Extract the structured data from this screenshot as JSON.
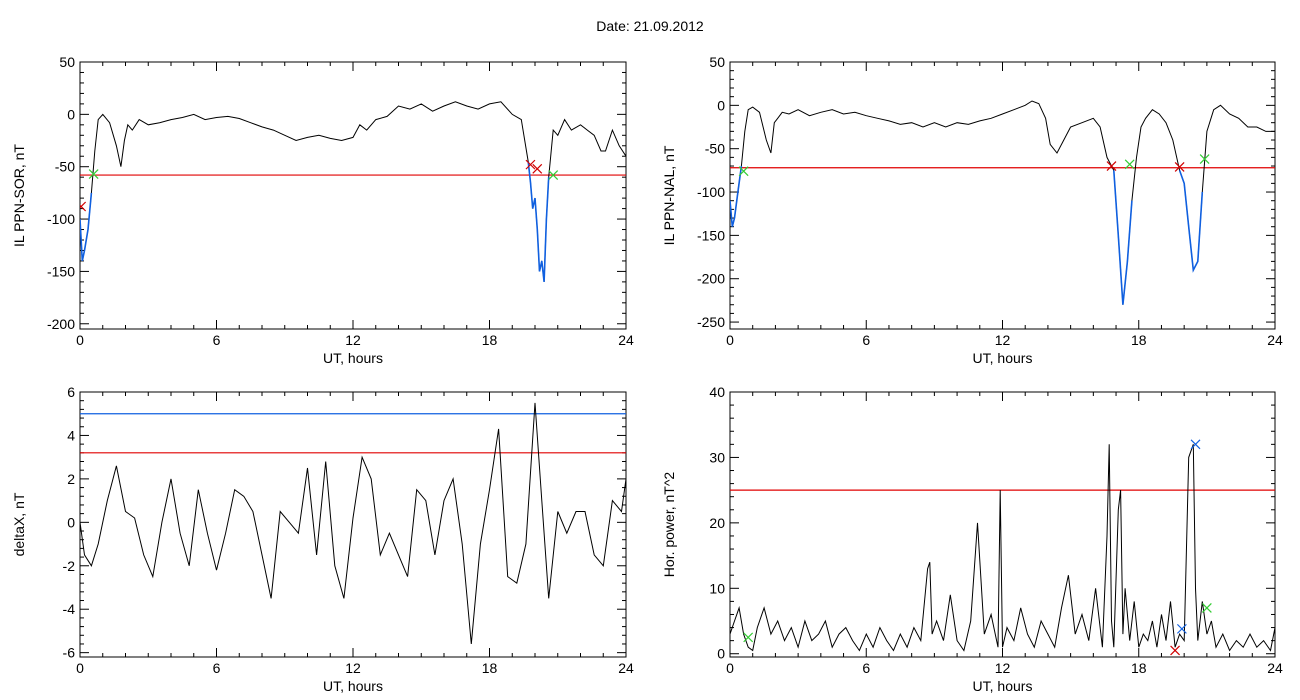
{
  "page_title": "Date:  21.09.2012",
  "colors": {
    "trace": "#000000",
    "threshold_red": "#e00000",
    "threshold_blue": "#1060e0",
    "overlay_blue": "#1060e0",
    "marker_red": "#d00000",
    "marker_green": "#33cc33",
    "marker_blue": "#1060e0"
  },
  "chart_data": [
    {
      "id": "sor",
      "type": "line",
      "xlabel": "UT, hours",
      "ylabel": "IL PPN-SOR, nT",
      "xlim": [
        0,
        24
      ],
      "ylim": [
        -205,
        50
      ],
      "xticks": [
        0,
        6,
        12,
        18,
        24
      ],
      "yticks": [
        50,
        0,
        -50,
        -100,
        -150,
        -200
      ],
      "series": [
        {
          "x": [
            0,
            0.1,
            0.2,
            0.35,
            0.5,
            0.65,
            0.8,
            1.0,
            1.3,
            1.6,
            1.8,
            1.95,
            2.1,
            2.3,
            2.6,
            3,
            3.5,
            4,
            4.5,
            5,
            5.5,
            6,
            6.5,
            7,
            7.5,
            8,
            8.5,
            9,
            9.5,
            10,
            10.5,
            11,
            11.5,
            12,
            12.3,
            12.6,
            13,
            13.5,
            14,
            14.5,
            15,
            15.5,
            16,
            16.5,
            17,
            17.5,
            18,
            18.5,
            19,
            19.4,
            19.7,
            19.8,
            19.9,
            20.0,
            20.1,
            20.2,
            20.3,
            20.4,
            20.5,
            20.6,
            20.8,
            21.0,
            21.3,
            21.6,
            22,
            22.3,
            22.6,
            22.9,
            23.1,
            23.4,
            23.7,
            24
          ],
          "y": [
            -100,
            -140,
            -130,
            -110,
            -75,
            -35,
            -5,
            0,
            -8,
            -30,
            -50,
            -25,
            -10,
            -15,
            -5,
            -10,
            -8,
            -5,
            -3,
            0,
            -5,
            -3,
            -2,
            -4,
            -8,
            -12,
            -15,
            -20,
            -25,
            -22,
            -20,
            -23,
            -25,
            -22,
            -10,
            -15,
            -5,
            -2,
            8,
            5,
            10,
            3,
            8,
            12,
            8,
            5,
            10,
            12,
            0,
            -5,
            -45,
            -65,
            -90,
            -80,
            -110,
            -150,
            -140,
            -160,
            -100,
            -60,
            -15,
            -20,
            -5,
            -15,
            -10,
            -15,
            -20,
            -35,
            -35,
            -15,
            -30,
            -40
          ]
        }
      ],
      "overlays": [
        {
          "x": [
            0,
            0.1,
            0.2,
            0.35,
            0.5
          ],
          "y": [
            -100,
            -140,
            -130,
            -110,
            -75
          ]
        },
        {
          "x": [
            19.7,
            19.8,
            19.9,
            20.0,
            20.1,
            20.2,
            20.3,
            20.4,
            20.5,
            20.6
          ],
          "y": [
            -45,
            -65,
            -90,
            -80,
            -110,
            -150,
            -140,
            -160,
            -100,
            -60
          ]
        }
      ],
      "thresholds": [
        {
          "y": -58,
          "color": "red"
        }
      ],
      "markers": [
        {
          "x": 0.05,
          "y": -88,
          "color": "red"
        },
        {
          "x": 0.6,
          "y": -57,
          "color": "green"
        },
        {
          "x": 19.8,
          "y": -48,
          "color": "red"
        },
        {
          "x": 20.1,
          "y": -52,
          "color": "red"
        },
        {
          "x": 20.8,
          "y": -58,
          "color": "green"
        }
      ]
    },
    {
      "id": "nal",
      "type": "line",
      "xlabel": "UT, hours",
      "ylabel": "IL PPN-NAL, nT",
      "xlim": [
        0,
        24
      ],
      "ylim": [
        -258,
        50
      ],
      "xticks": [
        0,
        6,
        12,
        18,
        24
      ],
      "yticks": [
        50,
        0,
        -50,
        -100,
        -150,
        -200,
        -250
      ],
      "series": [
        {
          "x": [
            0,
            0.1,
            0.2,
            0.35,
            0.5,
            0.65,
            0.8,
            1.0,
            1.3,
            1.6,
            1.8,
            1.95,
            2.1,
            2.3,
            2.6,
            3,
            3.5,
            4,
            4.5,
            5,
            5.5,
            6,
            6.5,
            7,
            7.5,
            8,
            8.5,
            9,
            9.5,
            10,
            10.5,
            11,
            11.5,
            12,
            12.5,
            13,
            13.3,
            13.6,
            13.9,
            14.1,
            14.4,
            14.7,
            15,
            15.5,
            16,
            16.3,
            16.6,
            16.9,
            17.1,
            17.3,
            17.5,
            17.7,
            17.9,
            18.1,
            18.3,
            18.6,
            18.9,
            19.2,
            19.5,
            19.8,
            20.0,
            20.2,
            20.4,
            20.6,
            20.8,
            21.0,
            21.3,
            21.6,
            22,
            22.4,
            22.8,
            23.2,
            23.6,
            24
          ],
          "y": [
            -110,
            -140,
            -130,
            -100,
            -70,
            -30,
            -5,
            -2,
            -8,
            -40,
            -55,
            -20,
            -15,
            -8,
            -10,
            -5,
            -12,
            -8,
            -5,
            -10,
            -8,
            -12,
            -15,
            -18,
            -22,
            -20,
            -25,
            -20,
            -25,
            -20,
            -22,
            -18,
            -15,
            -10,
            -5,
            0,
            5,
            2,
            -15,
            -45,
            -55,
            -40,
            -25,
            -20,
            -15,
            -25,
            -60,
            -75,
            -150,
            -230,
            -180,
            -110,
            -60,
            -25,
            -15,
            -5,
            -10,
            -20,
            -40,
            -75,
            -90,
            -140,
            -190,
            -180,
            -100,
            -30,
            -5,
            0,
            -10,
            -15,
            -25,
            -25,
            -30,
            -30
          ]
        }
      ],
      "overlays": [
        {
          "x": [
            0,
            0.1,
            0.2,
            0.35,
            0.5
          ],
          "y": [
            -110,
            -140,
            -130,
            -100,
            -70
          ]
        },
        {
          "x": [
            16.9,
            17.1,
            17.3,
            17.5,
            17.7
          ],
          "y": [
            -75,
            -150,
            -230,
            -180,
            -110
          ]
        },
        {
          "x": [
            19.8,
            20.0,
            20.2,
            20.4,
            20.6,
            20.8
          ],
          "y": [
            -75,
            -90,
            -140,
            -190,
            -180,
            -100
          ]
        }
      ],
      "thresholds": [
        {
          "y": -72,
          "color": "red"
        }
      ],
      "markers": [
        {
          "x": 0.6,
          "y": -76,
          "color": "green"
        },
        {
          "x": 16.8,
          "y": -70,
          "color": "red"
        },
        {
          "x": 17.6,
          "y": -68,
          "color": "green"
        },
        {
          "x": 19.8,
          "y": -71,
          "color": "red"
        },
        {
          "x": 20.9,
          "y": -62,
          "color": "green"
        }
      ]
    },
    {
      "id": "deltax",
      "type": "line",
      "xlabel": "UT, hours",
      "ylabel": "deltaX, nT",
      "xlim": [
        0,
        24
      ],
      "ylim": [
        -6.2,
        6
      ],
      "xticks": [
        0,
        6,
        12,
        18,
        24
      ],
      "yticks": [
        6,
        4,
        2,
        0,
        -2,
        -4,
        -6
      ],
      "series": [
        {
          "x": [
            0,
            0.2,
            0.5,
            0.8,
            1.2,
            1.6,
            2.0,
            2.4,
            2.8,
            3.2,
            3.6,
            4.0,
            4.4,
            4.8,
            5.2,
            5.6,
            6.0,
            6.4,
            6.8,
            7.2,
            7.6,
            8.0,
            8.4,
            8.8,
            9.2,
            9.6,
            10,
            10.4,
            10.8,
            11.2,
            11.6,
            12,
            12.4,
            12.8,
            13.2,
            13.6,
            14,
            14.4,
            14.8,
            15.2,
            15.6,
            16,
            16.4,
            16.8,
            17.2,
            17.6,
            18,
            18.4,
            18.8,
            19.2,
            19.6,
            20,
            20.3,
            20.6,
            21,
            21.4,
            21.8,
            22.2,
            22.6,
            23,
            23.4,
            23.8,
            24
          ],
          "y": [
            0,
            -1.5,
            -2.0,
            -1.0,
            1.0,
            2.6,
            0.5,
            0.2,
            -1.5,
            -2.5,
            0,
            2.0,
            -0.5,
            -2.0,
            1.5,
            -0.5,
            -2.2,
            -0.5,
            1.5,
            1.2,
            0.5,
            -1.5,
            -3.5,
            0.5,
            0,
            -0.5,
            2.5,
            -1.5,
            2.8,
            -2.0,
            -3.5,
            0.2,
            3.0,
            2.0,
            -1.5,
            -0.5,
            -1.5,
            -2.5,
            1.5,
            1.0,
            -1.5,
            1.0,
            2.0,
            -1.0,
            -5.6,
            -1.0,
            1.5,
            4.3,
            -2.5,
            -2.8,
            -1.0,
            5.5,
            1.0,
            -3.5,
            0.5,
            -0.5,
            0.5,
            0.5,
            -1.5,
            -2.0,
            1.0,
            0.5,
            2.0
          ]
        }
      ],
      "thresholds": [
        {
          "y": 5.0,
          "color": "blue"
        },
        {
          "y": 3.2,
          "color": "red"
        }
      ],
      "markers": []
    },
    {
      "id": "power",
      "type": "line",
      "xlabel": "UT, hours",
      "ylabel": "Hor. power, nT^2",
      "xlim": [
        0,
        24
      ],
      "ylim": [
        -0.5,
        40
      ],
      "xticks": [
        0,
        6,
        12,
        18,
        24
      ],
      "yticks": [
        40,
        30,
        20,
        10,
        0
      ],
      "series": [
        {
          "x": [
            0,
            0.2,
            0.4,
            0.6,
            0.8,
            1.0,
            1.2,
            1.5,
            1.8,
            2.1,
            2.4,
            2.7,
            3.0,
            3.3,
            3.6,
            3.9,
            4.2,
            4.5,
            4.8,
            5.1,
            5.4,
            5.7,
            6.0,
            6.3,
            6.6,
            6.9,
            7.2,
            7.5,
            7.8,
            8.1,
            8.4,
            8.7,
            8.8,
            8.9,
            9.1,
            9.4,
            9.7,
            10.0,
            10.3,
            10.6,
            10.9,
            11.2,
            11.5,
            11.8,
            11.9,
            12.0,
            12.2,
            12.5,
            12.8,
            13.1,
            13.4,
            13.7,
            14.0,
            14.3,
            14.6,
            14.9,
            15.2,
            15.5,
            15.8,
            16.1,
            16.4,
            16.6,
            16.7,
            16.8,
            16.9,
            17.1,
            17.2,
            17.3,
            17.4,
            17.6,
            17.8,
            18.0,
            18.2,
            18.4,
            18.6,
            18.8,
            19.0,
            19.2,
            19.4,
            19.6,
            19.8,
            20.0,
            20.2,
            20.4,
            20.5,
            20.6,
            20.8,
            21.0,
            21.2,
            21.4,
            21.7,
            22.0,
            22.3,
            22.6,
            22.9,
            23.2,
            23.5,
            23.8,
            24
          ],
          "y": [
            3,
            5,
            7,
            3,
            1,
            0.5,
            4,
            7,
            3,
            5,
            2,
            4,
            1,
            5,
            2,
            3,
            5,
            1,
            3,
            4,
            2,
            0.5,
            3,
            1,
            4,
            2,
            0.5,
            3,
            1,
            4,
            2,
            13,
            14,
            3,
            5,
            2,
            9,
            2,
            0.5,
            5,
            20,
            3,
            6,
            1,
            25,
            1,
            4,
            2,
            7,
            3,
            1,
            5,
            3,
            1,
            7,
            12,
            3,
            6,
            2,
            10,
            1,
            18,
            32,
            5,
            1,
            22,
            25,
            3,
            10,
            2,
            8,
            1,
            3,
            2,
            5,
            1,
            6,
            2,
            8,
            1,
            3,
            2,
            30,
            32,
            10,
            2,
            8,
            3,
            5,
            1,
            3,
            0.5,
            2,
            1,
            3,
            1,
            2,
            0.5,
            4
          ]
        }
      ],
      "thresholds": [
        {
          "y": 25,
          "color": "red"
        }
      ],
      "markers": [
        {
          "x": 0.8,
          "y": 2.5,
          "color": "green"
        },
        {
          "x": 19.6,
          "y": 0.5,
          "color": "red"
        },
        {
          "x": 19.9,
          "y": 3.8,
          "color": "blue"
        },
        {
          "x": 20.5,
          "y": 32,
          "color": "blue"
        },
        {
          "x": 21.0,
          "y": 7,
          "color": "green"
        }
      ]
    }
  ]
}
